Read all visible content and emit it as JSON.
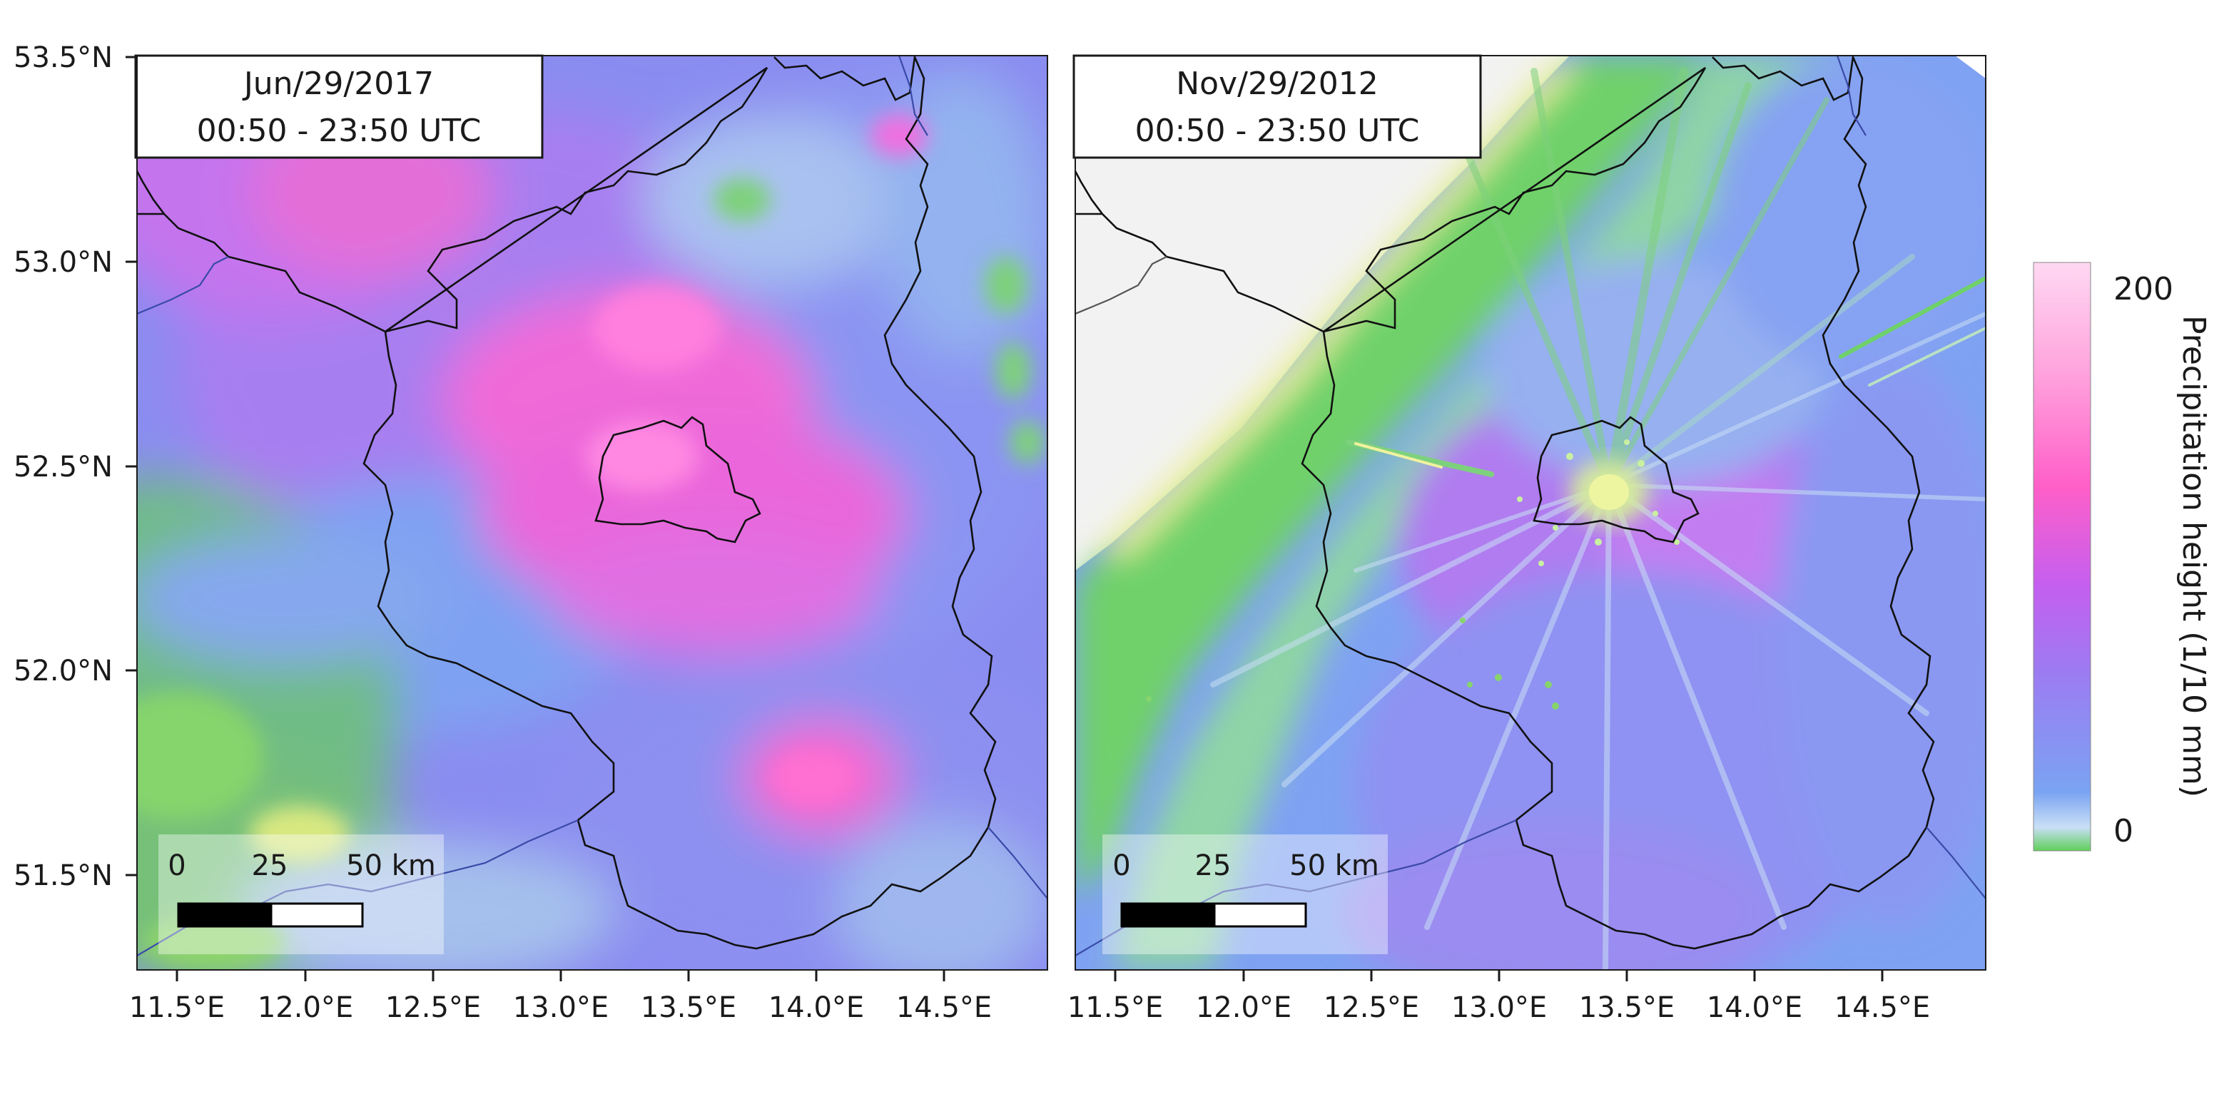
{
  "panels": [
    {
      "title_line1": "Jun/29/2017",
      "title_line2": "00:50 - 23:50 UTC",
      "scalebar": {
        "labels": [
          "0",
          "25",
          "50 km"
        ]
      }
    },
    {
      "title_line1": "Nov/29/2012",
      "title_line2": "00:50 - 23:50 UTC",
      "scalebar": {
        "labels": [
          "0",
          "25",
          "50 km"
        ]
      }
    }
  ],
  "axes": {
    "x_ticks": [
      "11.5°E",
      "12.0°E",
      "12.5°E",
      "13.0°E",
      "13.5°E",
      "14.0°E",
      "14.5°E"
    ],
    "y_ticks": [
      "53.5°N",
      "53.0°N",
      "52.5°N",
      "52.0°N",
      "51.5°N"
    ]
  },
  "colorbar": {
    "label": "Precipitation height (1/10 mm)",
    "max_label": "200",
    "min_label": "0",
    "colors": [
      "#5fcf5a",
      "#c9dff6",
      "#7aa3f2",
      "#9b7cf2",
      "#c45ff0",
      "#ff5fc8",
      "#ff9fdc",
      "#ffd8f2"
    ]
  },
  "colors": {
    "wet_high": "#ff66cc",
    "mid": "#9b7cf0",
    "low": "#7aa0f0",
    "dry_green": "#6ad36a",
    "no_data": "#f2f2f2",
    "border": "#111111"
  }
}
